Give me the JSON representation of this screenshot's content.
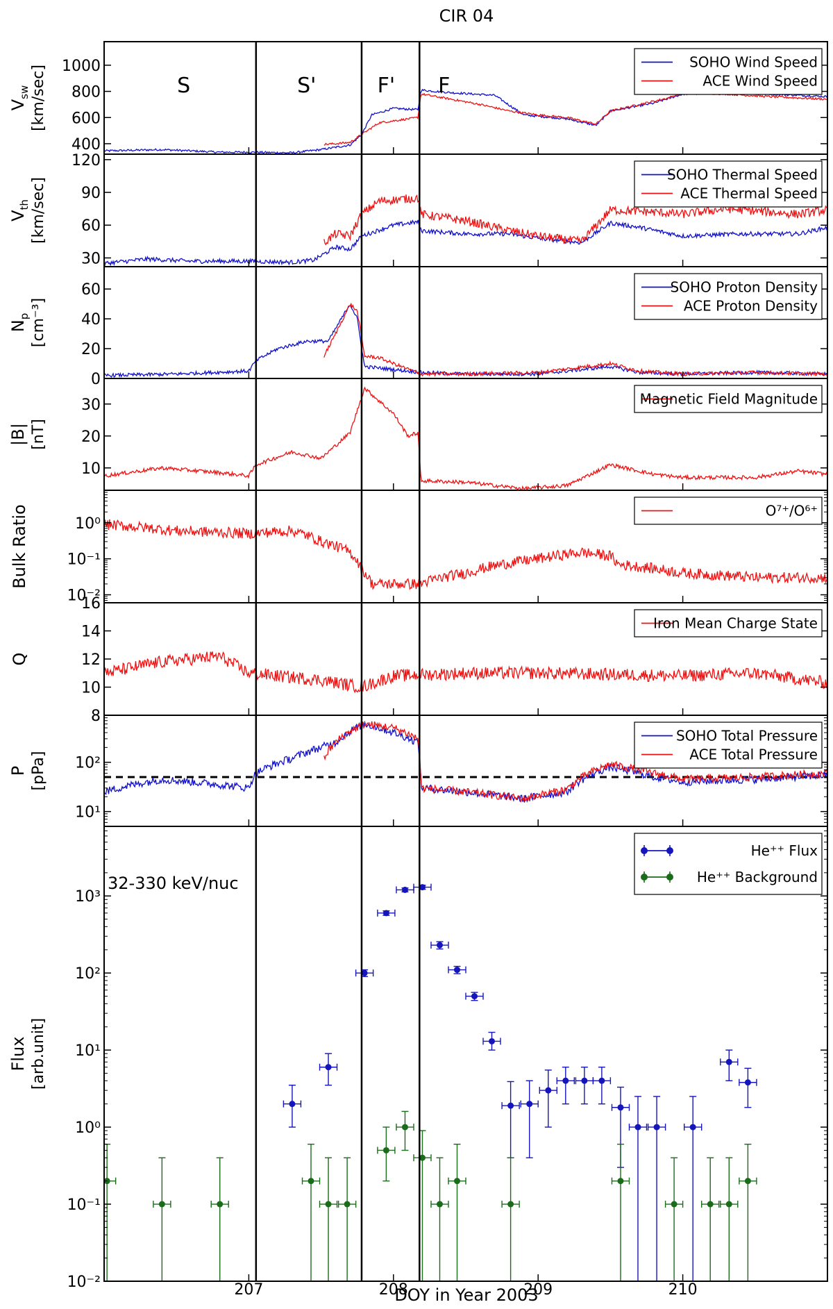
{
  "title": "CIR 04",
  "xlabel": "DOY in Year 2003",
  "xlim": [
    206.0,
    211.0
  ],
  "xticks": [
    207,
    208,
    209,
    210
  ],
  "region_boundaries": [
    207.05,
    207.78,
    208.18
  ],
  "regions": [
    {
      "label": "S",
      "x": 206.55
    },
    {
      "label": "S'",
      "x": 207.4
    },
    {
      "label": "F'",
      "x": 207.95
    },
    {
      "label": "F",
      "x": 208.35
    }
  ],
  "colors": {
    "soho": "#1010cc",
    "ace": "#ee1111",
    "flux": "#1515bb",
    "background": "#1a6b1a"
  },
  "chart_data": [
    {
      "type": "line",
      "ylabel": [
        "V",
        "sw",
        "[km/sec]"
      ],
      "ylim": [
        320,
        1180
      ],
      "yticks": [
        400,
        600,
        800,
        1000
      ],
      "yscale": "linear",
      "legend": "top-right",
      "series": [
        {
          "name": "SOHO Wind Speed",
          "color": "#1010cc",
          "noise": 8,
          "x": [
            206.0,
            206.4,
            206.8,
            207.0,
            207.3,
            207.5,
            207.7,
            207.78,
            207.85,
            208.0,
            208.17,
            208.19,
            208.4,
            208.7,
            208.9,
            209.2,
            209.4,
            209.5,
            209.8,
            210.0,
            210.3,
            210.6,
            211.0
          ],
          "y": [
            345,
            355,
            335,
            335,
            330,
            355,
            390,
            470,
            620,
            670,
            660,
            810,
            790,
            770,
            620,
            590,
            540,
            650,
            710,
            780,
            790,
            780,
            760
          ]
        },
        {
          "name": "ACE Wind Speed",
          "color": "#ee1111",
          "noise": 8,
          "x": [
            207.52,
            207.6,
            207.7,
            207.78,
            207.9,
            208.17,
            208.19,
            208.4,
            208.6,
            208.8,
            209.0,
            209.2,
            209.4,
            209.5,
            209.7,
            209.9,
            210.0,
            210.3,
            210.6,
            211.0
          ],
          "y": [
            395,
            400,
            410,
            470,
            560,
            600,
            780,
            740,
            700,
            650,
            620,
            600,
            550,
            650,
            700,
            750,
            790,
            780,
            760,
            740
          ]
        }
      ]
    },
    {
      "type": "line",
      "ylabel": [
        "V",
        "th",
        "[km/sec]"
      ],
      "ylim": [
        22,
        125
      ],
      "yticks": [
        30,
        60,
        90,
        120
      ],
      "yscale": "linear",
      "legend": "top-right",
      "series": [
        {
          "name": "SOHO Thermal Speed",
          "color": "#1010cc",
          "noise": 2,
          "x": [
            206.0,
            206.3,
            206.6,
            207.0,
            207.3,
            207.45,
            207.6,
            207.7,
            207.78,
            208.0,
            208.17,
            208.19,
            208.5,
            208.8,
            209.0,
            209.3,
            209.5,
            209.7,
            210.0,
            210.4,
            210.8,
            211.0
          ],
          "y": [
            25,
            29,
            27,
            27,
            26,
            28,
            40,
            38,
            50,
            60,
            63,
            55,
            52,
            52,
            48,
            44,
            62,
            58,
            50,
            52,
            52,
            58
          ]
        },
        {
          "name": "ACE Thermal Speed",
          "color": "#ee1111",
          "noise": 4,
          "x": [
            207.52,
            207.6,
            207.7,
            207.78,
            207.9,
            208.17,
            208.19,
            208.5,
            208.8,
            209.0,
            209.3,
            209.5,
            209.8,
            210.0,
            210.3,
            210.6,
            210.8,
            211.0
          ],
          "y": [
            44,
            52,
            50,
            70,
            82,
            85,
            70,
            64,
            55,
            50,
            45,
            74,
            72,
            70,
            75,
            72,
            70,
            74
          ]
        }
      ]
    },
    {
      "type": "line",
      "ylabel": [
        "N",
        "p",
        "[cm⁻³]"
      ],
      "ylim": [
        0,
        75
      ],
      "yticks": [
        0,
        20,
        40,
        60
      ],
      "yscale": "linear",
      "legend": "top-right",
      "series": [
        {
          "name": "SOHO Proton Density",
          "color": "#1010cc",
          "noise": 1.2,
          "x": [
            206.0,
            206.5,
            207.0,
            207.05,
            207.2,
            207.4,
            207.55,
            207.7,
            207.75,
            207.8,
            208.0,
            208.2,
            208.5,
            209.0,
            209.5,
            209.7,
            210.0,
            210.5,
            211.0
          ],
          "y": [
            2,
            3,
            5,
            12,
            20,
            25,
            25,
            50,
            40,
            8,
            6,
            4,
            3,
            3,
            8,
            4,
            3,
            4,
            3
          ]
        },
        {
          "name": "ACE Proton Density",
          "color": "#ee1111",
          "noise": 1.2,
          "x": [
            207.52,
            207.6,
            207.7,
            207.75,
            207.8,
            207.9,
            208.0,
            208.19,
            208.5,
            209.0,
            209.5,
            209.7,
            210.0,
            210.5,
            211.0
          ],
          "y": [
            15,
            30,
            50,
            45,
            15,
            14,
            10,
            3,
            3,
            4,
            10,
            5,
            3,
            4,
            3
          ]
        }
      ]
    },
    {
      "type": "line",
      "ylabel": [
        "|B|",
        "[nT]"
      ],
      "ylim": [
        3,
        38
      ],
      "yticks": [
        10,
        20,
        30
      ],
      "yscale": "linear",
      "legend": "top-right",
      "series": [
        {
          "name": "Magnetic Field Magnitude",
          "color": "#ee1111",
          "noise": 0.6,
          "x": [
            206.0,
            206.4,
            206.8,
            207.0,
            207.05,
            207.3,
            207.5,
            207.7,
            207.75,
            207.8,
            207.9,
            208.0,
            208.1,
            208.17,
            208.19,
            208.5,
            208.9,
            209.2,
            209.5,
            209.8,
            210.0,
            210.5,
            210.8,
            211.0
          ],
          "y": [
            7.5,
            10,
            8.5,
            7.5,
            11,
            15,
            13,
            21,
            28,
            35,
            31,
            27,
            20,
            21,
            6,
            5.5,
            3.5,
            4.5,
            11,
            8,
            7,
            7,
            9,
            8
          ]
        }
      ]
    },
    {
      "type": "line",
      "ylabel": [
        "Bulk Ratio"
      ],
      "ylim": [
        0.006,
        8
      ],
      "yticks": [
        0.01,
        0.1,
        1
      ],
      "yticklabels": [
        "10⁻²",
        "10⁻¹",
        "10⁰"
      ],
      "yscale": "log",
      "legend": "top-right",
      "series": [
        {
          "name": "O⁷⁺/O⁶⁺",
          "color": "#ee1111",
          "noise": 0.15,
          "lognoise": true,
          "x": [
            206.0,
            206.5,
            207.0,
            207.3,
            207.5,
            207.7,
            207.78,
            207.85,
            208.0,
            208.18,
            208.5,
            209.0,
            209.3,
            209.5,
            209.55,
            210.0,
            210.5,
            211.0
          ],
          "y": [
            0.9,
            0.6,
            0.5,
            0.6,
            0.3,
            0.15,
            0.05,
            0.02,
            0.02,
            0.02,
            0.04,
            0.1,
            0.15,
            0.12,
            0.07,
            0.04,
            0.03,
            0.03
          ]
        }
      ]
    },
    {
      "type": "line",
      "ylabel": [
        "Q"
      ],
      "ylim": [
        8,
        16
      ],
      "yticks": [
        8,
        10,
        12,
        14,
        16
      ],
      "yscale": "linear",
      "legend": "top-right",
      "series": [
        {
          "name": "Iron Mean Charge State",
          "color": "#ee1111",
          "noise": 0.45,
          "x": [
            206.0,
            206.4,
            206.8,
            207.0,
            207.5,
            207.78,
            208.0,
            208.5,
            209.0,
            209.5,
            210.0,
            210.5,
            211.0
          ],
          "y": [
            11.0,
            11.8,
            12.2,
            11.0,
            10.5,
            10.0,
            10.8,
            11.0,
            11.0,
            10.9,
            10.8,
            11.0,
            10.3
          ]
        }
      ]
    },
    {
      "type": "line",
      "ylabel": [
        "P",
        "[pPa]"
      ],
      "ylim": [
        5,
        900
      ],
      "yticks": [
        10,
        100
      ],
      "yticklabels": [
        "10¹",
        "10²"
      ],
      "yscale": "log",
      "legend": "top-right",
      "reference_line": 50,
      "series": [
        {
          "name": "SOHO Total Pressure",
          "color": "#1010cc",
          "noise": 0.08,
          "lognoise": true,
          "x": [
            206.0,
            206.4,
            206.8,
            207.0,
            207.05,
            207.3,
            207.5,
            207.6,
            207.8,
            208.0,
            208.17,
            208.19,
            208.5,
            208.9,
            209.2,
            209.5,
            209.8,
            210.0,
            210.5,
            211.0
          ],
          "y": [
            25,
            45,
            35,
            30,
            60,
            120,
            200,
            250,
            600,
            400,
            250,
            30,
            25,
            18,
            25,
            80,
            50,
            40,
            45,
            55
          ]
        },
        {
          "name": "ACE Total Pressure",
          "color": "#ee1111",
          "noise": 0.08,
          "lognoise": true,
          "x": [
            207.52,
            207.6,
            207.8,
            208.0,
            208.17,
            208.19,
            208.5,
            208.9,
            209.2,
            209.5,
            209.8,
            210.0,
            210.5,
            211.0
          ],
          "y": [
            120,
            250,
            600,
            500,
            300,
            30,
            25,
            18,
            28,
            90,
            60,
            45,
            50,
            60
          ]
        }
      ]
    },
    {
      "type": "scatter",
      "ylabel": [
        "Flux",
        "[arb.unit]"
      ],
      "ylim": [
        0.01,
        8000
      ],
      "yticks": [
        0.01,
        0.1,
        1,
        10,
        100,
        1000
      ],
      "yticklabels": [
        "10⁻²",
        "10⁻¹",
        "10⁰",
        "10¹",
        "10²",
        "10³"
      ],
      "yscale": "log",
      "legend": "top-right",
      "annotation": "32-330 keV/nuc",
      "series": [
        {
          "name": "He⁺⁺ Flux",
          "color": "#1515bb",
          "x": [
            207.3,
            207.55,
            207.8,
            207.95,
            208.08,
            208.2,
            208.32,
            208.44,
            208.56,
            208.68,
            208.81,
            208.94,
            209.07,
            209.19,
            209.32,
            209.44,
            209.57,
            209.69,
            209.82,
            210.07,
            210.32,
            210.45
          ],
          "y": [
            2,
            6,
            100,
            600,
            1200,
            1300,
            230,
            110,
            50,
            13,
            1.9,
            2,
            3,
            4,
            4,
            4,
            1.8,
            1,
            1,
            1,
            7,
            3.8
          ],
          "yerr_low": [
            1.0,
            2.5,
            10,
            40,
            70,
            80,
            25,
            12,
            6,
            3,
            1.5,
            1.6,
            2,
            2,
            2,
            2,
            1.5,
            0.99,
            0.99,
            0.99,
            3,
            2
          ],
          "yerr_high": [
            1.5,
            3,
            10,
            40,
            70,
            80,
            25,
            12,
            6,
            4,
            2,
            2,
            2.5,
            2,
            2,
            2,
            1.5,
            1.5,
            1.5,
            1.5,
            3,
            2
          ],
          "xerr": [
            0.06,
            0.06,
            0.06,
            0.06,
            0.06,
            0.06,
            0.06,
            0.06,
            0.06,
            0.06,
            0.06,
            0.06,
            0.06,
            0.06,
            0.06,
            0.06,
            0.06,
            0.06,
            0.06,
            0.06,
            0.06,
            0.06
          ]
        },
        {
          "name": "He⁺⁺ Background",
          "color": "#1a6b1a",
          "x": [
            206.02,
            206.4,
            206.8,
            207.43,
            207.55,
            207.68,
            207.95,
            208.08,
            208.2,
            208.32,
            208.44,
            208.81,
            209.57,
            209.94,
            210.19,
            210.32,
            210.45
          ],
          "y": [
            0.2,
            0.1,
            0.1,
            0.2,
            0.1,
            0.1,
            0.5,
            1.0,
            0.4,
            0.1,
            0.2,
            0.1,
            0.2,
            0.1,
            0.1,
            0.1,
            0.2
          ],
          "yerr_low": [
            0.195,
            0.099,
            0.099,
            0.195,
            0.099,
            0.099,
            0.3,
            0.5,
            0.395,
            0.099,
            0.195,
            0.099,
            0.195,
            0.099,
            0.099,
            0.099,
            0.195
          ],
          "yerr_high": [
            0.4,
            0.3,
            0.3,
            0.4,
            0.3,
            0.3,
            0.5,
            0.6,
            0.5,
            0.3,
            0.4,
            0.3,
            0.4,
            0.3,
            0.3,
            0.3,
            0.4
          ],
          "xerr": [
            0.06,
            0.06,
            0.06,
            0.06,
            0.06,
            0.06,
            0.06,
            0.06,
            0.06,
            0.06,
            0.06,
            0.06,
            0.06,
            0.06,
            0.06,
            0.06,
            0.06
          ]
        }
      ]
    }
  ]
}
